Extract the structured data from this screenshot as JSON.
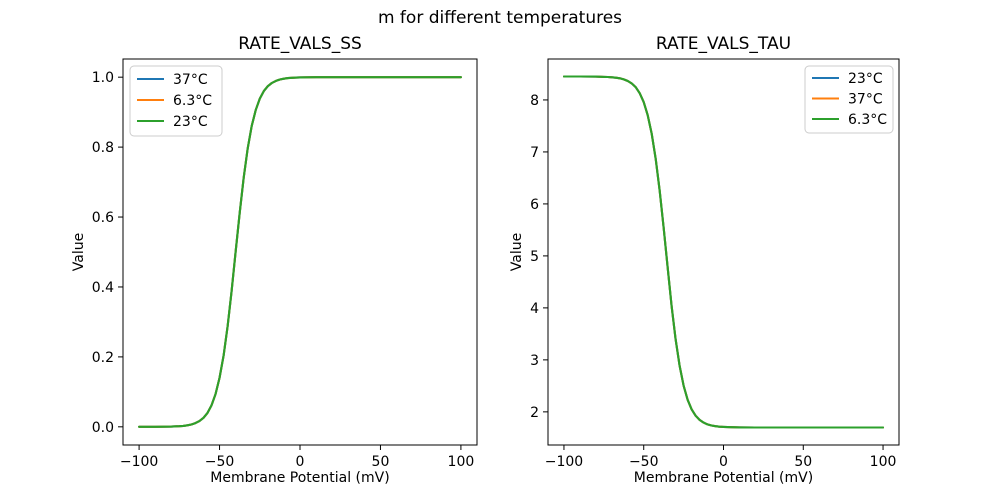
{
  "figure": {
    "suptitle": "m for different temperatures",
    "background_color": "#ffffff",
    "spine_color": "#000000",
    "legend_border_color": "#cccccc"
  },
  "chart_data": [
    {
      "type": "line",
      "title": "RATE_VALS_SS",
      "xlabel": "Membrane Potential (mV)",
      "ylabel": "Value",
      "xlim": [
        -110,
        110
      ],
      "ylim": [
        -0.052,
        1.052
      ],
      "xticks": [
        -100,
        -50,
        0,
        50,
        100
      ],
      "xtick_labels": [
        "−100",
        "−50",
        "0",
        "50",
        "100"
      ],
      "yticks": [
        0.0,
        0.2,
        0.4,
        0.6,
        0.8,
        1.0
      ],
      "ytick_labels": [
        "0.0",
        "0.2",
        "0.4",
        "0.6",
        "0.8",
        "1.0"
      ],
      "grid": false,
      "legend_position": "upper left",
      "x": [
        -100,
        -90,
        -80,
        -75,
        -72.5,
        -70,
        -67.5,
        -65,
        -62.5,
        -60,
        -57.5,
        -55,
        -52.5,
        -50,
        -47.5,
        -45,
        -42.5,
        -40,
        -37.5,
        -35,
        -32.5,
        -30,
        -27.5,
        -25,
        -22.5,
        -20,
        -17.5,
        -15,
        -12.5,
        -10,
        -7.5,
        -5,
        -2.5,
        0,
        5,
        10,
        20,
        40,
        60,
        80,
        100
      ],
      "shared_values": [
        0.0,
        0.0001,
        0.0007,
        0.0017,
        0.0027,
        0.0043,
        0.0067,
        0.0105,
        0.0164,
        0.0257,
        0.0399,
        0.0613,
        0.0934,
        0.1396,
        0.2037,
        0.2872,
        0.3883,
        0.5,
        0.6117,
        0.7128,
        0.7963,
        0.8604,
        0.9066,
        0.9387,
        0.9601,
        0.9743,
        0.9835,
        0.9895,
        0.9933,
        0.9957,
        0.9973,
        0.9983,
        0.9989,
        0.9993,
        0.9997,
        0.9999,
        1.0,
        1.0,
        1.0,
        1.0,
        1.0
      ],
      "series": [
        {
          "name": "37°C",
          "color": "#1f77b4"
        },
        {
          "name": "6.3°C",
          "color": "#ff7f0e"
        },
        {
          "name": "23°C",
          "color": "#2ca02c"
        }
      ],
      "note": "All three temperature curves coincide exactly; only the last-drawn green (23°C) curve is visible. Sigmoid midpoint ≈ −40 mV."
    },
    {
      "type": "line",
      "title": "RATE_VALS_TAU",
      "xlabel": "Membrane Potential (mV)",
      "ylabel": "Value",
      "xlim": [
        -110,
        110
      ],
      "ylim": [
        1.3625,
        8.7875
      ],
      "xticks": [
        -100,
        -50,
        0,
        50,
        100
      ],
      "xtick_labels": [
        "−100",
        "−50",
        "0",
        "50",
        "100"
      ],
      "yticks": [
        2,
        3,
        4,
        5,
        6,
        7,
        8
      ],
      "ytick_labels": [
        "2",
        "3",
        "4",
        "5",
        "6",
        "7",
        "8"
      ],
      "grid": false,
      "legend_position": "upper right",
      "x": [
        -100,
        -90,
        -80,
        -75,
        -72.5,
        -70,
        -67.5,
        -65,
        -62.5,
        -60,
        -57.5,
        -55,
        -52.5,
        -50,
        -47.5,
        -45,
        -42.5,
        -40,
        -37.5,
        -35,
        -32.5,
        -30,
        -27.5,
        -25,
        -22.5,
        -20,
        -17.5,
        -15,
        -12.5,
        -10,
        -7.5,
        -5,
        -2.5,
        0,
        5,
        10,
        20,
        40,
        60,
        80,
        100
      ],
      "shared_values": [
        8.45,
        8.45,
        8.448,
        8.444,
        8.441,
        8.436,
        8.428,
        8.416,
        8.396,
        8.365,
        8.317,
        8.243,
        8.13,
        7.959,
        7.707,
        7.35,
        6.866,
        6.251,
        5.533,
        4.769,
        4.036,
        3.397,
        2.887,
        2.505,
        2.234,
        2.049,
        1.926,
        1.845,
        1.793,
        1.759,
        1.738,
        1.724,
        1.715,
        1.71,
        1.704,
        1.702,
        1.7,
        1.7,
        1.7,
        1.7,
        1.7
      ],
      "series": [
        {
          "name": "23°C",
          "color": "#1f77b4"
        },
        {
          "name": "37°C",
          "color": "#ff7f0e"
        },
        {
          "name": "6.3°C",
          "color": "#2ca02c"
        }
      ],
      "note": "All three temperature curves coincide exactly; only the last-drawn green (6.3°C) curve is visible. Plateau high ≈ 8.45, plateau low ≈ 1.70, midpoint ≈ −36 mV."
    }
  ]
}
